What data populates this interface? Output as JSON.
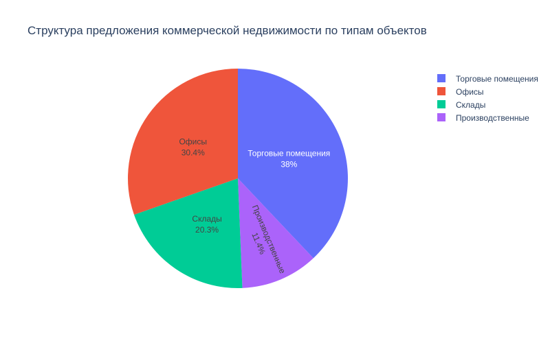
{
  "chart_data": {
    "type": "pie",
    "title": "Структура предложения коммерческой недвижимости по типам объектов",
    "slices": [
      {
        "label": "Торговые помещения",
        "percent_text": "38%",
        "value": 38.0,
        "color": "#636efa",
        "text_color": "#ffffff"
      },
      {
        "label": "Производственные",
        "percent_text": "11.4%",
        "value": 11.4,
        "color": "#ab63fa",
        "text_color": "#444444"
      },
      {
        "label": "Склады",
        "percent_text": "20.3%",
        "value": 20.3,
        "color": "#00cc96",
        "text_color": "#444444"
      },
      {
        "label": "Офисы",
        "percent_text": "30.4%",
        "value": 30.4,
        "color": "#ef553b",
        "text_color": "#444444"
      }
    ],
    "legend": {
      "placement": "top-right",
      "items": [
        {
          "label": "Торговые помещения",
          "color": "#636efa"
        },
        {
          "label": "Офисы",
          "color": "#ef553b"
        },
        {
          "label": "Склады",
          "color": "#00cc96"
        },
        {
          "label": "Производственные",
          "color": "#ab63fa"
        }
      ]
    }
  }
}
